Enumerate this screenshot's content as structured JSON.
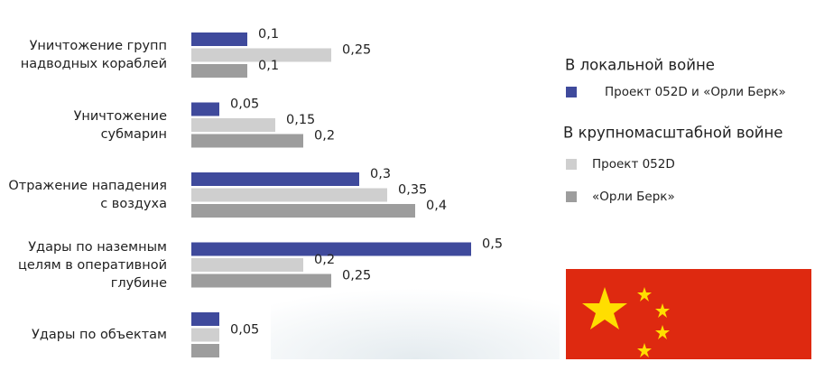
{
  "chart_data": {
    "type": "barh",
    "categories": [
      "Уничтожение групп надводных кораблей",
      "Уничтожение субмарин",
      "Отражение нападения с воздуха",
      "Удары по наземным целям в оперативной глубине",
      "Удары по объектам"
    ],
    "legend_titles": [
      "В локальной войне",
      "В крупномасштабной войне"
    ],
    "series": [
      {
        "name": "Проект 052D и «Орли Берк»",
        "color": "#3f4a9c",
        "values": [
          0.1,
          0.05,
          0.3,
          0.5,
          0.05
        ],
        "value_labels": [
          "0,1",
          "0,05",
          "0,3",
          "0,5",
          null
        ]
      },
      {
        "name": "Проект 052D",
        "color": "#cfcfcf",
        "values": [
          0.25,
          0.15,
          0.35,
          0.2,
          0.05
        ],
        "value_labels": [
          "0,25",
          "0,15",
          "0,35",
          "0,2",
          "0,05"
        ]
      },
      {
        "name": "«Орли Берк»",
        "color": "#9d9d9d",
        "values": [
          0.1,
          0.2,
          0.4,
          0.25,
          0.05
        ],
        "value_labels": [
          "0,1",
          "0,2",
          "0,4",
          "0,25",
          null
        ]
      }
    ],
    "xlim": [
      0,
      0.5
    ]
  }
}
